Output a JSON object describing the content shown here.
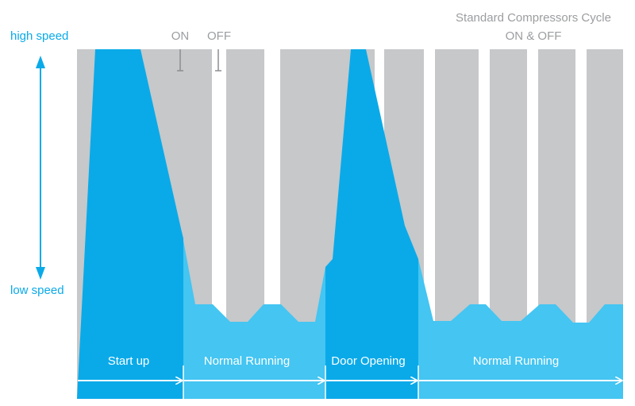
{
  "colors": {
    "gray": "#C6C8CA",
    "white": "#FFFFFF",
    "dark_blue": "#0AAAE9",
    "light_blue": "#44C5F2",
    "mid_blue": "#27B7EE",
    "label_blue": "#0AAAE9",
    "label_gray": "#9B9DA0",
    "tick_gray": "#8C8E91"
  },
  "legend": {
    "line1": "Standard Compressors Cycle",
    "line2": "ON & OFF",
    "on": "ON",
    "off": "OFF"
  },
  "speed_axis": {
    "high": "high speed",
    "low": "low speed"
  },
  "phases": [
    {
      "label": "Start up"
    },
    {
      "label": "Normal Running"
    },
    {
      "label": "Door Opening"
    },
    {
      "label": "Normal Running"
    }
  ],
  "icons": [
    "double-arrow-icon",
    "phase-arrow-icon"
  ]
}
